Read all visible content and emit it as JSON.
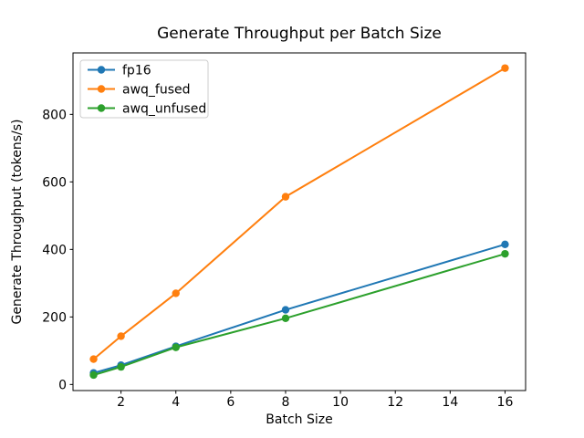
{
  "figure": {
    "background": "#ffffff"
  },
  "chart_data": {
    "type": "line",
    "title": "Generate Throughput per Batch Size",
    "xlabel": "Batch Size",
    "ylabel": "Generate Throughput (tokens/s)",
    "x": [
      1,
      2,
      4,
      8,
      16
    ],
    "series": [
      {
        "name": "fp16",
        "color": "#1f77b4",
        "values": [
          34,
          57,
          113,
          221,
          415
        ]
      },
      {
        "name": "awq_fused",
        "color": "#ff7f0e",
        "values": [
          75,
          143,
          270,
          556,
          937
        ]
      },
      {
        "name": "awq_unfused",
        "color": "#2ca02c",
        "values": [
          28,
          52,
          110,
          196,
          387
        ]
      }
    ],
    "xticks": [
      2,
      4,
      6,
      8,
      10,
      12,
      14,
      16
    ],
    "yticks": [
      0,
      200,
      400,
      600,
      800
    ],
    "xlim": [
      0.25,
      16.75
    ],
    "ylim": [
      -18,
      982
    ],
    "grid": false,
    "marker": "o",
    "line_width": 2,
    "marker_radius": 4.2,
    "legend": {
      "position": "upper left",
      "entries": [
        "fp16",
        "awq_fused",
        "awq_unfused"
      ],
      "border_color": "#cccccc",
      "background": "#ffffff"
    },
    "spine_color": "#000000"
  }
}
